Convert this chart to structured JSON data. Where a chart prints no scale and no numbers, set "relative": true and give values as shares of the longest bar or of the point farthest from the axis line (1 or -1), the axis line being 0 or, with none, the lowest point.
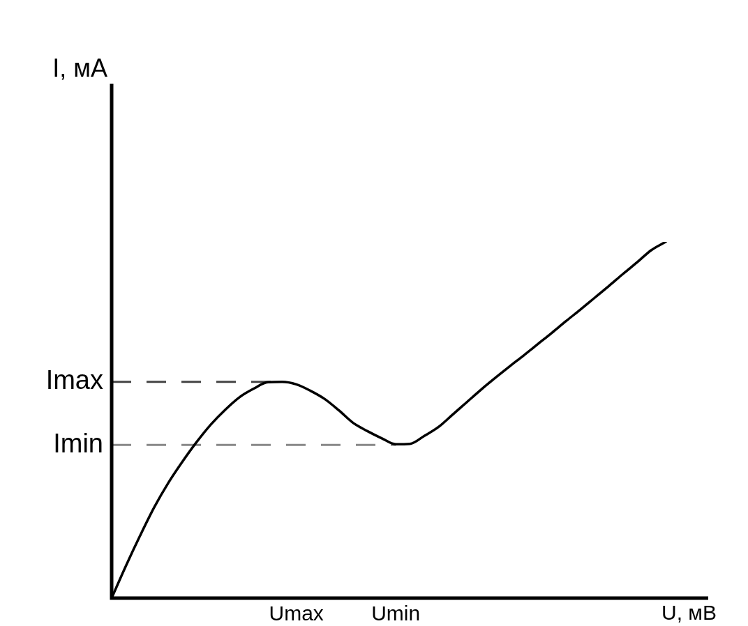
{
  "chart_data": {
    "type": "line",
    "relative": true,
    "xlabel": "U, мВ",
    "annotations": [
      "I, мА"
    ],
    "categories": [
      null,
      null,
      null,
      null,
      null,
      null,
      null,
      null,
      null,
      null,
      null,
      null,
      null,
      "Umax",
      null,
      null,
      null,
      null,
      null,
      null,
      "Umin",
      null,
      null,
      null,
      null,
      null,
      null,
      null,
      null,
      null,
      null,
      null,
      null,
      null,
      null,
      null,
      null,
      null,
      null,
      null,
      null,
      null,
      null
    ],
    "series": [
      {
        "color": "#000000",
        "values": [
          0,
          0.09,
          0.175,
          0.255,
          0.324,
          0.384,
          0.439,
          0.488,
          0.529,
          0.564,
          0.588,
          0.606,
          0.607,
          0.6,
          0.582,
          0.559,
          0.527,
          0.492,
          0.469,
          0.449,
          0.432,
          0.433,
          0.455,
          0.48,
          0.515,
          0.55,
          0.585,
          0.618,
          0.65,
          0.681,
          0.713,
          0.745,
          0.778,
          0.81,
          0.843,
          0.876,
          0.91,
          0.943,
          0.977,
          1,
          null,
          null,
          null
        ]
      }
    ],
    "ref_lines": [
      {
        "axis": "y",
        "value": 0.607,
        "label": "Imax",
        "color": "#444444",
        "line_style": "dashed"
      },
      {
        "axis": "y",
        "value": 0.43,
        "label": "Imin",
        "color": "#888888",
        "line_style": "dashed"
      }
    ],
    "grid": false,
    "legend": false,
    "marker": "none",
    "line_style": "solid"
  }
}
